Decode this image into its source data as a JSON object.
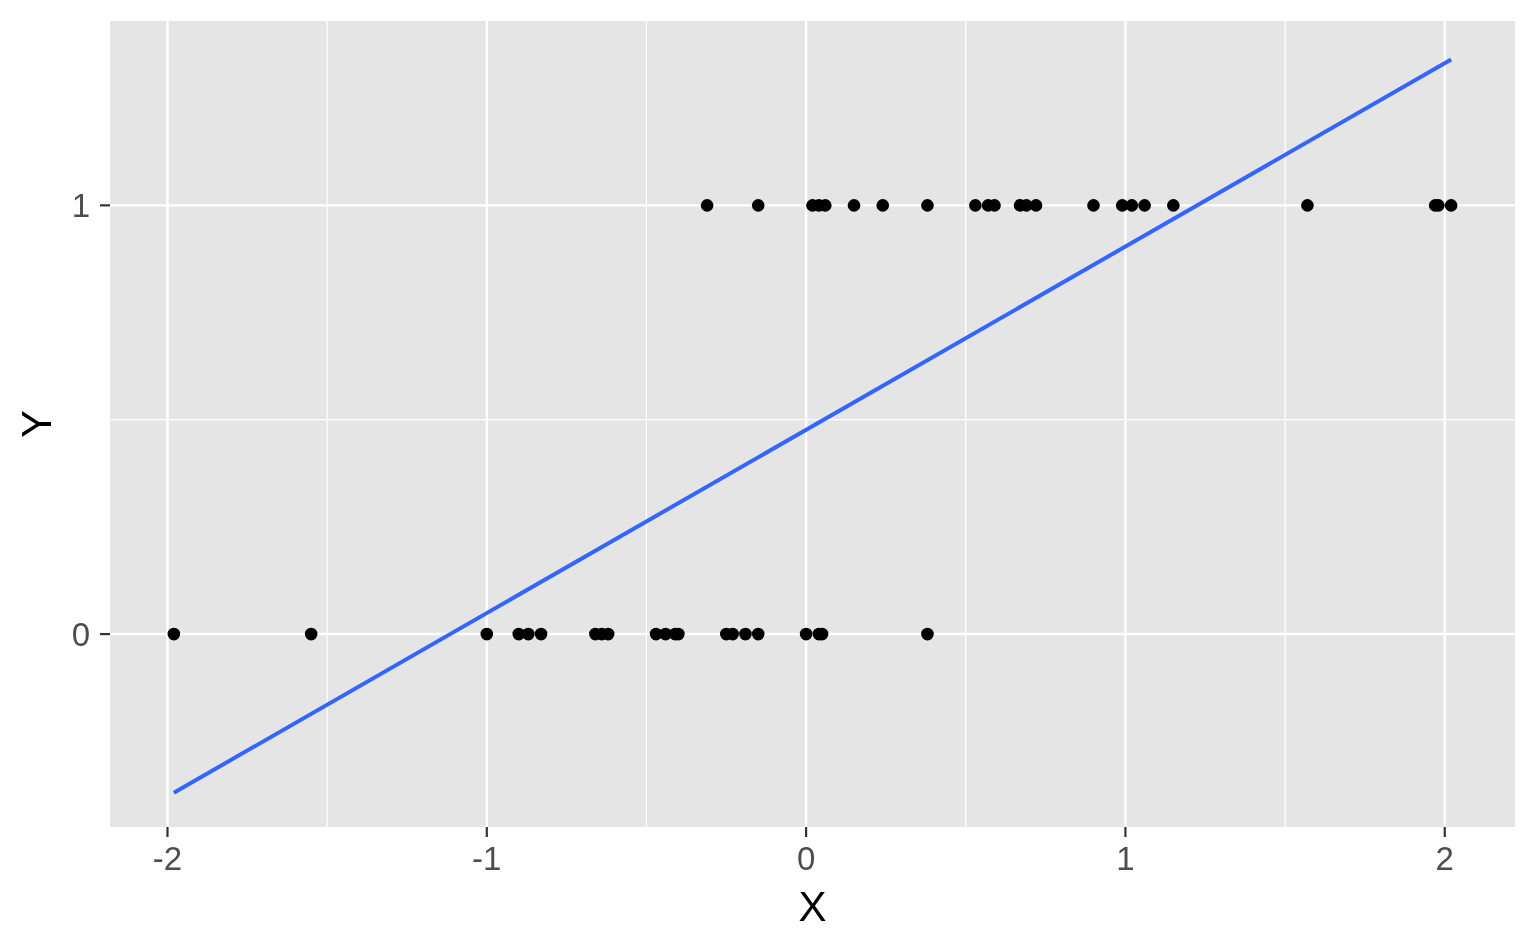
{
  "chart_data": {
    "type": "scatter",
    "xlabel": "X",
    "ylabel": "Y",
    "xlim": [
      -2.18,
      2.22
    ],
    "ylim": [
      -0.45,
      1.43
    ],
    "xticks": [
      -2,
      -1,
      0,
      1,
      2
    ],
    "yticks": [
      0,
      1
    ],
    "grid": true,
    "marker": "circle",
    "series": [
      {
        "color": "#000000",
        "x": [
          -1.98,
          -1.55,
          -1.0,
          -0.9,
          -0.87,
          -0.83,
          -0.66,
          -0.64,
          -0.62,
          -0.47,
          -0.44,
          -0.41,
          -0.4,
          -0.25,
          -0.23,
          -0.19,
          -0.15,
          0.0,
          0.04,
          0.05,
          0.38,
          -0.31,
          -0.15,
          0.02,
          0.04,
          0.06,
          0.15,
          0.24,
          0.38,
          0.53,
          0.57,
          0.59,
          0.67,
          0.69,
          0.72,
          0.9,
          0.99,
          1.02,
          1.06,
          1.15,
          1.57,
          1.97,
          1.98,
          2.02
        ],
        "values": [
          0,
          0,
          0,
          0,
          0,
          0,
          0,
          0,
          0,
          0,
          0,
          0,
          0,
          0,
          0,
          0,
          0,
          0,
          0,
          0,
          0,
          1,
          1,
          1,
          1,
          1,
          1,
          1,
          1,
          1,
          1,
          1,
          1,
          1,
          1,
          1,
          1,
          1,
          1,
          1,
          1,
          1,
          1,
          1
        ]
      },
      {
        "type": "line",
        "color": "#3366ff",
        "line_style": "solid",
        "marker": "none",
        "x": [
          -1.98,
          2.02
        ],
        "values": [
          -0.37,
          1.34
        ]
      }
    ]
  }
}
